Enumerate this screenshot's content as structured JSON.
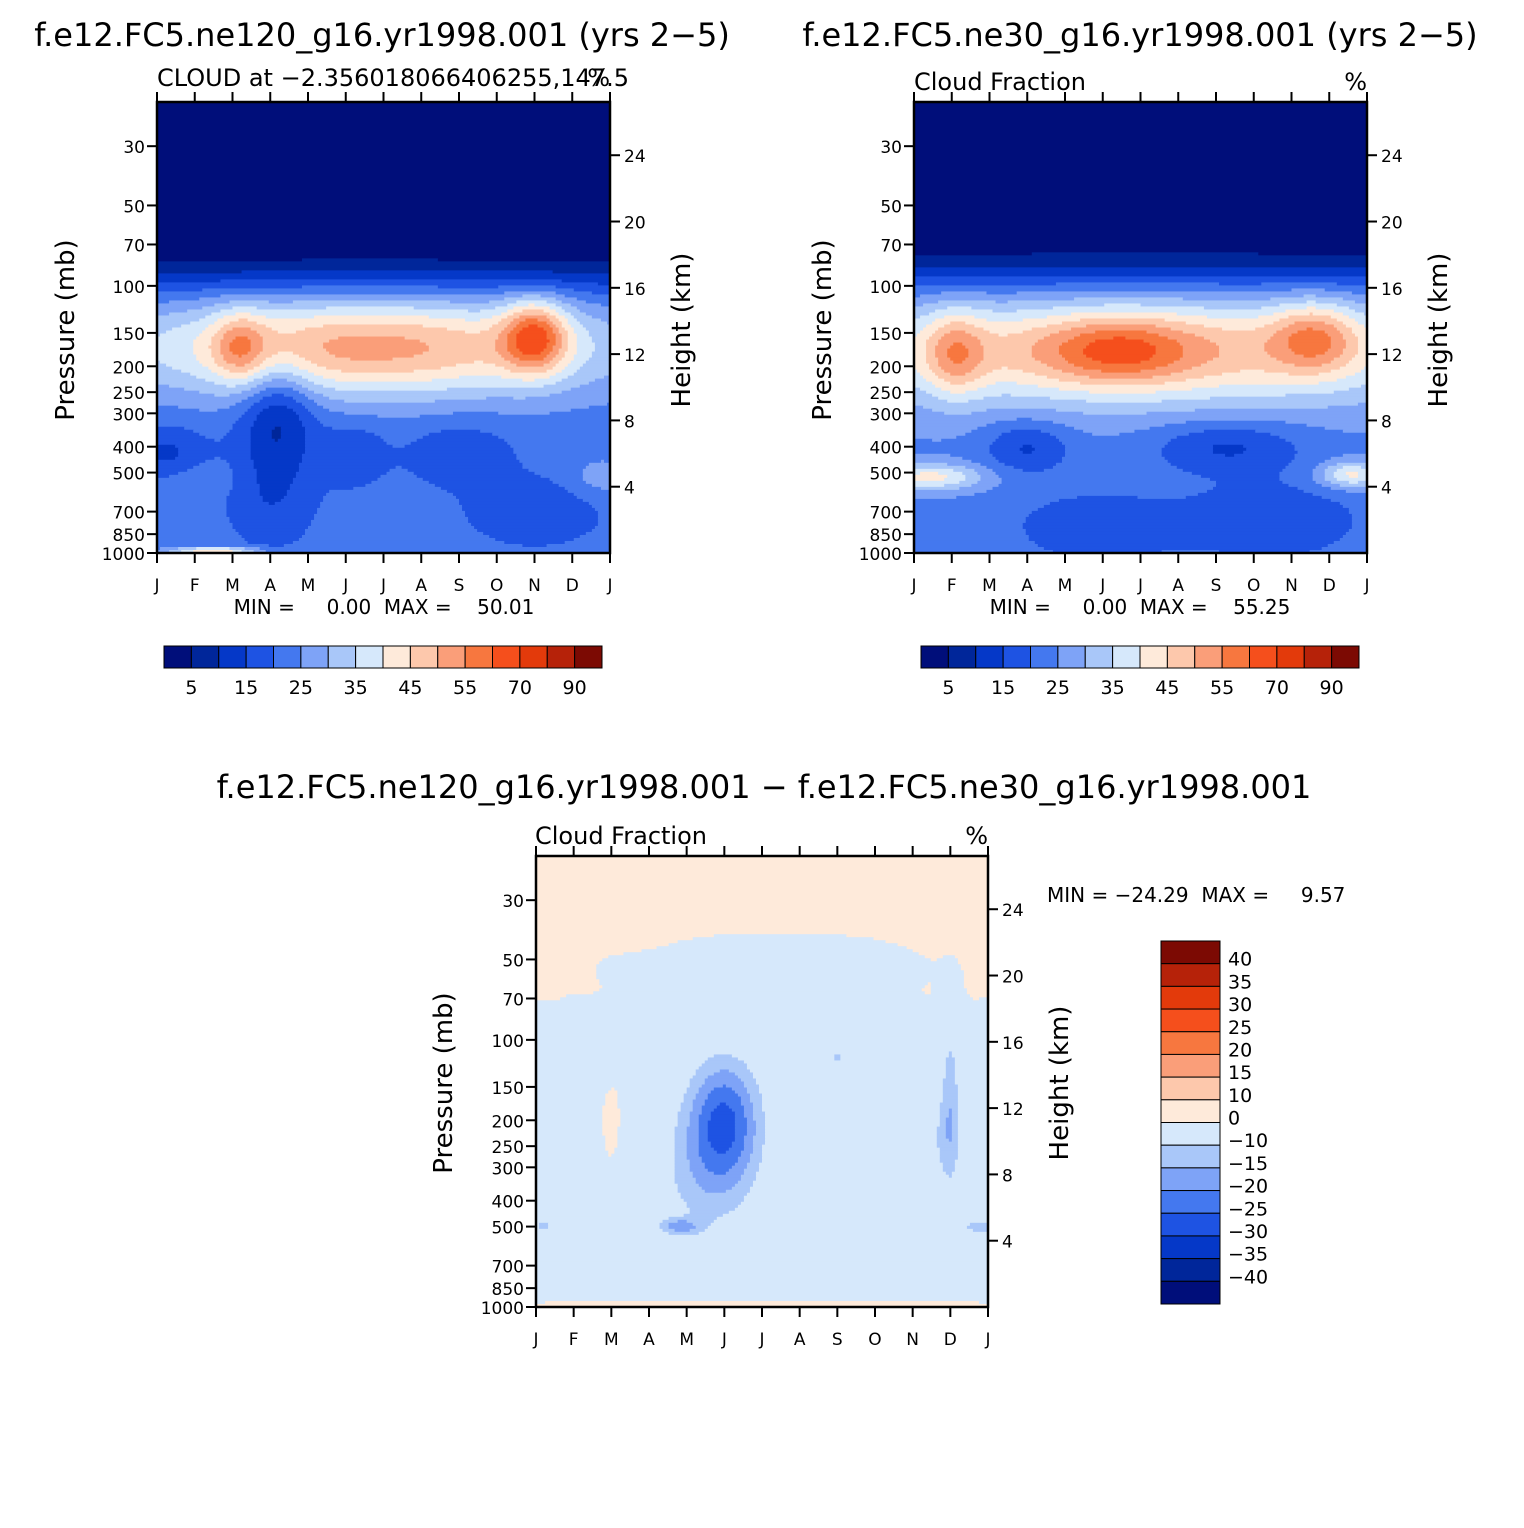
{
  "chart_data": [
    {
      "type": "heatmap",
      "id": "p1",
      "case_title": "f.e12.FC5.ne120_g16.yr1998.001 (yrs 2−5)",
      "left_label": "CLOUD at −2.356018066406255,147.5",
      "right_label": "%",
      "ylabel": "Pressure (mb)",
      "ylabel_right": "Height (km)",
      "minmax": "MIN =     0.00  MAX =    50.01",
      "x_ticks": [
        "J",
        "F",
        "M",
        "A",
        "M",
        "J",
        "J",
        "A",
        "S",
        "O",
        "N",
        "D",
        "J"
      ],
      "pressure_ticks": [
        30,
        50,
        70,
        100,
        150,
        200,
        250,
        300,
        400,
        500,
        700,
        850,
        1000
      ],
      "height_ticks": [
        24,
        20,
        16,
        12,
        8,
        4
      ],
      "ylim_mb": [
        1000,
        20
      ],
      "colorbar": {
        "levels": [
          0,
          5,
          10,
          15,
          20,
          25,
          30,
          35,
          40,
          45,
          50,
          55,
          60,
          70,
          80,
          90,
          100
        ],
        "tick_labels": [
          "5",
          "15",
          "25",
          "35",
          "45",
          "55",
          "70",
          "90"
        ],
        "colors": [
          "#000e7a",
          "#00269a",
          "#0538c8",
          "#1e53e3",
          "#4478ef",
          "#7ea3f7",
          "#a9c7f9",
          "#d6e8fb",
          "#feeada",
          "#fdc8ac",
          "#fa9e79",
          "#f7773f",
          "#f54f1c",
          "#e33a0b",
          "#b62209",
          "#7c0a03"
        ]
      },
      "fields": {
        "upper_tropo_max": {
          "months": [
            2.2,
            10.0
          ],
          "pressure_mb": 170,
          "value": 50.01
        },
        "background_stratosphere": 0,
        "mid_tropo": 15,
        "lower_tropo": 10
      }
    },
    {
      "type": "heatmap",
      "id": "p2",
      "case_title": "f.e12.FC5.ne30_g16.yr1998.001 (yrs 2−5)",
      "left_label": "Cloud Fraction",
      "right_label": "%",
      "ylabel": "Pressure (mb)",
      "ylabel_right": "Height (km)",
      "minmax": "MIN =     0.00  MAX =    55.25",
      "x_ticks": [
        "J",
        "F",
        "M",
        "A",
        "M",
        "J",
        "J",
        "A",
        "S",
        "O",
        "N",
        "D",
        "J"
      ],
      "pressure_ticks": [
        30,
        50,
        70,
        100,
        150,
        200,
        250,
        300,
        400,
        500,
        700,
        850,
        1000
      ],
      "height_ticks": [
        24,
        20,
        16,
        12,
        8,
        4
      ],
      "ylim_mb": [
        1000,
        20
      ],
      "colorbar": {
        "levels": [
          0,
          5,
          10,
          15,
          20,
          25,
          30,
          35,
          40,
          45,
          50,
          55,
          60,
          70,
          80,
          90,
          100
        ],
        "tick_labels": [
          "5",
          "15",
          "25",
          "35",
          "45",
          "55",
          "70",
          "90"
        ],
        "colors": [
          "#000e7a",
          "#00269a",
          "#0538c8",
          "#1e53e3",
          "#4478ef",
          "#7ea3f7",
          "#a9c7f9",
          "#d6e8fb",
          "#feeada",
          "#fdc8ac",
          "#fa9e79",
          "#f7773f",
          "#f54f1c",
          "#e33a0b",
          "#b62209",
          "#7c0a03"
        ]
      },
      "fields": {
        "upper_tropo_max": {
          "months": [
            1.1,
            5.4,
            10.6
          ],
          "pressure_mb": 170,
          "value": 55.25
        },
        "background_stratosphere": 0,
        "mid_tropo": 20,
        "lower_tropo": 15
      }
    },
    {
      "type": "heatmap",
      "id": "p3",
      "case_title": "f.e12.FC5.ne120_g16.yr1998.001 − f.e12.FC5.ne30_g16.yr1998.001",
      "left_label": "Cloud Fraction",
      "right_label": "%",
      "ylabel": "Pressure (mb)",
      "ylabel_right": "Height (km)",
      "minmax": "MIN = −24.29  MAX =     9.57",
      "x_ticks": [
        "J",
        "F",
        "M",
        "A",
        "M",
        "J",
        "J",
        "A",
        "S",
        "O",
        "N",
        "D",
        "J"
      ],
      "pressure_ticks": [
        30,
        50,
        70,
        100,
        150,
        200,
        250,
        300,
        400,
        500,
        700,
        850,
        1000
      ],
      "height_ticks": [
        24,
        20,
        16,
        12,
        8,
        4
      ],
      "ylim_mb": [
        1000,
        20
      ],
      "colorbar": {
        "levels": [
          -45,
          -40,
          -35,
          -30,
          -25,
          -20,
          -15,
          -10,
          0,
          10,
          15,
          20,
          25,
          30,
          35,
          40,
          45
        ],
        "tick_labels": [
          "40",
          "35",
          "30",
          "25",
          "20",
          "15",
          "10",
          "0",
          "−10",
          "−15",
          "−20",
          "−25",
          "−30",
          "−35",
          "−40"
        ],
        "colors": [
          "#000e7a",
          "#00269a",
          "#0538c8",
          "#1e53e3",
          "#4478ef",
          "#7ea3f7",
          "#a9c7f9",
          "#d6e8fb",
          "#feeada",
          "#fdc8ac",
          "#fa9e79",
          "#f7773f",
          "#f54f1c",
          "#e33a0b",
          "#b62209",
          "#7c0a03"
        ]
      },
      "fields": {
        "min": {
          "month": 5.0,
          "pressure_mb": 200,
          "value": -24.29
        },
        "max": {
          "month": 11.0,
          "pressure_mb": 25,
          "value": 9.57
        }
      }
    }
  ]
}
